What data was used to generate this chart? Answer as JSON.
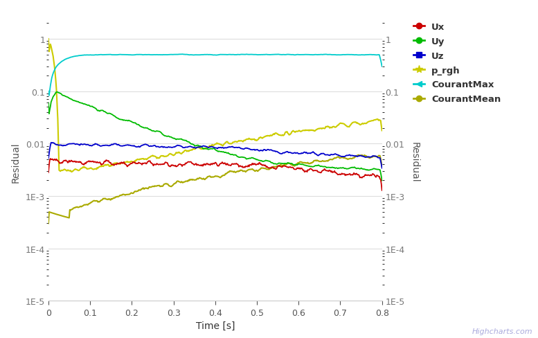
{
  "title": "",
  "xlabel": "Time [s]",
  "ylabel_left": "Residual",
  "ylabel_right": "Residual",
  "xlim": [
    0,
    0.8
  ],
  "ylim": [
    1e-05,
    2
  ],
  "x_ticks": [
    0.0,
    0.1,
    0.2,
    0.3,
    0.4,
    0.5,
    0.6,
    0.7,
    0.8
  ],
  "colors": {
    "Ux": "#cc0000",
    "Uy": "#00bb00",
    "Uz": "#0000cc",
    "p_rgh": "#cccc00",
    "CourantMax": "#00cccc",
    "CourantMean": "#aaaa00"
  },
  "background_color": "#ffffff",
  "grid_color": "#dddddd",
  "legend_labels": [
    "Ux",
    "Uy",
    "Uz",
    "p_rgh",
    "CourantMax",
    "CourantMean"
  ],
  "highcharts_text": "Highcharts.com"
}
